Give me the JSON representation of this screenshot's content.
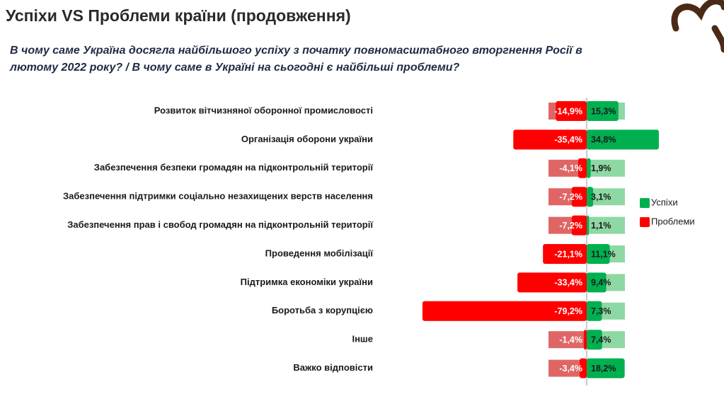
{
  "chart_data": {
    "type": "diverging_bar",
    "title": "Успіхи VS Проблеми країни (продовження)",
    "subtitle": [
      "В чому саме Україна досягла найбільшого успіху з початку повномасштабного вторгнення Росії в",
      "лютому 2022 року? / В чому саме в Україні на сьогодні є найбільші проблеми?"
    ],
    "categories": [
      "Розвиток вітчизняної оборонної промисловості",
      "Організація оборони україни",
      "Забезпечення безпеки громадян на підконтрольній території",
      "Забезпечення підтримки соціально незахищених верств населення",
      "Забезпечення прав і свобод громадян на підконтрольній території",
      "Проведення мобілізації",
      "Підтримка економіки україни",
      "Боротьба з корупцією",
      "Інше",
      "Важко відповісти"
    ],
    "series": [
      {
        "name": "Успіхи",
        "color": "#00b050",
        "values": [
          15.3,
          34.8,
          1.9,
          3.1,
          1.1,
          11.1,
          9.4,
          7.3,
          7.4,
          18.2
        ],
        "value_labels": [
          "15,3%",
          "34,8%",
          "1,9%",
          "3,1%",
          "1,1%",
          "11,1%",
          "9,4%",
          "7,3%",
          "7,4%",
          "18,2%"
        ]
      },
      {
        "name": "Проблеми",
        "color": "#ff0000",
        "values": [
          -14.9,
          -35.4,
          -4.1,
          -7.2,
          -7.2,
          -21.1,
          -33.4,
          -79.2,
          -1.4,
          -3.4
        ],
        "value_labels": [
          "-14,9%",
          "-35,4%",
          "-4,1%",
          "-7,2%",
          "-7,2%",
          "-21,1%",
          "-33,4%",
          "-79,2%",
          "-1,4%",
          "-3,4%"
        ]
      }
    ],
    "legend": "right"
  }
}
